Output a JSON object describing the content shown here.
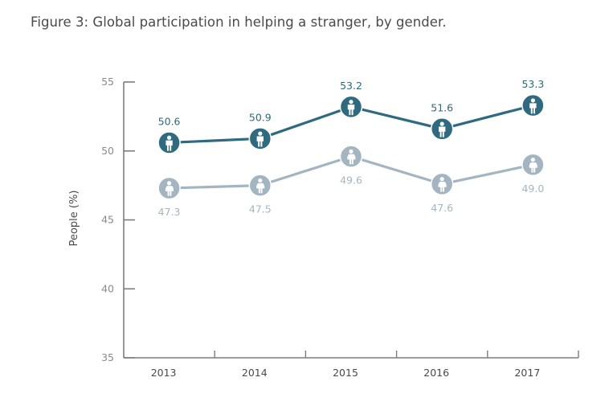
{
  "chart_data": {
    "type": "line",
    "title": "Figure 3: Global participation in helping a stranger, by gender.",
    "xlabel": "",
    "ylabel": "People (%)",
    "ylim": [
      35,
      55
    ],
    "yticks": [
      35,
      40,
      45,
      50,
      55
    ],
    "grid": false,
    "legend": "none (series indicated by male/female icon markers)",
    "categories": [
      "2013",
      "2014",
      "2015",
      "2016",
      "2017"
    ],
    "series": [
      {
        "name": "Men",
        "marker_icon": "male-person-icon",
        "color": "#2e6a80",
        "values": [
          50.6,
          50.9,
          53.2,
          51.6,
          53.3
        ],
        "labels": [
          "50.6",
          "50.9",
          "53.2",
          "51.6",
          "53.3"
        ],
        "label_position": "above"
      },
      {
        "name": "Women",
        "marker_icon": "female-person-icon",
        "color": "#a4b5c2",
        "values": [
          47.3,
          47.5,
          49.6,
          47.6,
          49.0
        ],
        "labels": [
          "47.3",
          "47.5",
          "49.6",
          "47.6",
          "49.0"
        ],
        "label_position": "below"
      }
    ]
  }
}
